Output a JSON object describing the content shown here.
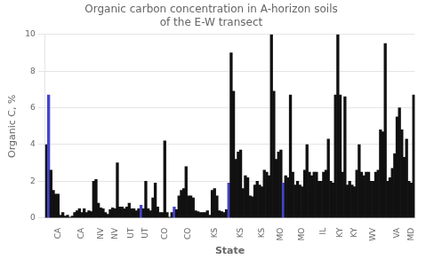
{
  "chart_data": {
    "type": "bar",
    "title": "Organic carbon concentration in A-horizon soils\nof the E-W transect",
    "xlabel": "State",
    "ylabel": "Organic C, %",
    "categories": [
      null,
      null,
      null,
      null,
      null,
      "CA",
      null,
      null,
      null,
      null,
      null,
      null,
      null,
      null,
      null,
      "CA",
      null,
      null,
      null,
      null,
      null,
      null,
      null,
      "NV",
      null,
      null,
      null,
      null,
      null,
      "NV",
      null,
      null,
      null,
      null,
      null,
      null,
      "UT",
      null,
      null,
      null,
      null,
      null,
      "UT",
      null,
      null,
      null,
      null,
      null,
      null,
      null,
      "CO",
      null,
      null,
      null,
      null,
      null,
      null,
      null,
      null,
      null,
      "CO",
      null,
      null,
      null,
      null,
      null,
      null,
      null,
      null,
      null,
      null,
      "KS",
      null,
      null,
      null,
      null,
      null,
      null,
      null,
      null,
      null,
      null,
      "KS",
      null,
      null,
      null,
      null,
      null,
      null,
      null,
      null,
      "KS",
      null,
      null,
      null,
      null,
      null,
      null,
      null,
      "MO",
      null,
      null,
      null,
      null,
      null,
      null,
      null,
      null,
      "MO",
      null,
      null,
      null,
      null,
      null,
      null,
      null,
      null,
      "IL",
      null,
      null,
      null,
      null,
      null,
      null,
      "KY",
      null,
      null,
      null,
      null,
      null,
      "KY",
      null,
      null,
      null,
      null,
      null,
      null,
      null,
      "WV",
      null,
      null,
      null,
      null,
      null,
      null,
      null,
      null,
      null,
      "VA",
      null,
      null,
      null,
      null,
      null,
      "MD",
      null
    ],
    "values": [
      4.0,
      6.7,
      2.6,
      1.5,
      1.3,
      1.3,
      0.15,
      0.3,
      0.1,
      0.15,
      0.05,
      0.1,
      0.3,
      0.4,
      0.5,
      0.3,
      0.5,
      0.3,
      0.4,
      0.35,
      2.0,
      2.1,
      0.8,
      0.55,
      0.5,
      0.3,
      0.2,
      0.45,
      0.55,
      0.5,
      3.0,
      0.6,
      0.6,
      0.5,
      0.6,
      0.8,
      0.5,
      0.5,
      0.4,
      0.5,
      0.7,
      0.5,
      2.0,
      0.5,
      0.4,
      1.1,
      1.9,
      0.6,
      0.3,
      0.3,
      4.2,
      0.3,
      0.05,
      0.3,
      0.6,
      0.45,
      1.2,
      1.5,
      1.6,
      2.8,
      1.2,
      1.2,
      1.1,
      0.4,
      0.35,
      0.3,
      0.3,
      0.3,
      0.4,
      0.15,
      1.5,
      1.6,
      1.2,
      0.4,
      0.35,
      0.3,
      0.45,
      1.9,
      9.0,
      6.9,
      3.2,
      3.6,
      3.7,
      1.6,
      2.3,
      2.2,
      1.2,
      1.15,
      1.8,
      2.0,
      1.8,
      1.7,
      2.6,
      2.5,
      2.3,
      10.0,
      6.9,
      3.2,
      3.6,
      3.7,
      1.9,
      2.3,
      2.2,
      6.7,
      2.5,
      1.8,
      2.0,
      1.8,
      1.7,
      2.6,
      4.0,
      2.5,
      2.3,
      2.5,
      2.5,
      2.0,
      2.0,
      2.5,
      2.6,
      4.3,
      2.0,
      1.9,
      6.7,
      10.0,
      6.7,
      2.5,
      6.6,
      1.8,
      2.0,
      1.8,
      1.7,
      2.6,
      4.0,
      2.5,
      2.3,
      2.5,
      2.5,
      2.0,
      2.0,
      2.5,
      2.6,
      4.8,
      4.7,
      9.5,
      2.0,
      2.2,
      2.7,
      3.5,
      5.5,
      6.0,
      4.8,
      3.3,
      4.3,
      2.0,
      1.9,
      6.7
    ],
    "colors": [
      "#111111",
      "#4444cc",
      "#111111",
      "#111111",
      "#111111",
      "#111111",
      "#111111",
      "#111111",
      "#111111",
      "#111111",
      "#111111",
      "#111111",
      "#111111",
      "#111111",
      "#111111",
      "#111111",
      "#111111",
      "#111111",
      "#111111",
      "#111111",
      "#111111",
      "#111111",
      "#111111",
      "#111111",
      "#111111",
      "#111111",
      "#111111",
      "#111111",
      "#111111",
      "#111111",
      "#111111",
      "#111111",
      "#111111",
      "#111111",
      "#111111",
      "#111111",
      "#111111",
      "#111111",
      "#111111",
      "#111111",
      "#4444cc",
      "#111111",
      "#111111",
      "#111111",
      "#111111",
      "#111111",
      "#111111",
      "#111111",
      "#111111",
      "#111111",
      "#111111",
      "#111111",
      "#111111",
      "#111111",
      "#4444cc",
      "#111111",
      "#111111",
      "#111111",
      "#111111",
      "#111111",
      "#111111",
      "#111111",
      "#111111",
      "#111111",
      "#111111",
      "#111111",
      "#111111",
      "#111111",
      "#111111",
      "#111111",
      "#111111",
      "#111111",
      "#111111",
      "#111111",
      "#111111",
      "#111111",
      "#111111",
      "#4444cc",
      "#111111",
      "#111111",
      "#111111",
      "#111111",
      "#111111",
      "#111111",
      "#111111",
      "#111111",
      "#111111",
      "#111111",
      "#111111",
      "#111111",
      "#111111",
      "#111111",
      "#111111",
      "#111111",
      "#111111",
      "#111111",
      "#111111",
      "#111111",
      "#111111",
      "#111111",
      "#4444cc",
      "#111111",
      "#111111",
      "#111111",
      "#111111",
      "#111111",
      "#111111",
      "#111111",
      "#111111",
      "#111111",
      "#111111",
      "#111111",
      "#111111",
      "#111111",
      "#111111",
      "#111111",
      "#111111",
      "#111111",
      "#111111",
      "#111111",
      "#111111",
      "#111111",
      "#111111",
      "#111111",
      "#111111",
      "#111111",
      "#111111",
      "#111111",
      "#111111",
      "#111111",
      "#111111",
      "#111111",
      "#111111",
      "#111111",
      "#111111",
      "#111111",
      "#111111",
      "#111111",
      "#111111",
      "#111111",
      "#111111",
      "#111111",
      "#111111",
      "#111111",
      "#111111",
      "#111111",
      "#111111",
      "#111111",
      "#111111",
      "#111111",
      "#111111",
      "#111111",
      "#111111",
      "#111111",
      "#111111",
      "#111111"
    ],
    "ylim": [
      0,
      10
    ],
    "yticks": [
      0,
      2,
      4,
      6,
      8,
      10
    ],
    "grid": true
  }
}
